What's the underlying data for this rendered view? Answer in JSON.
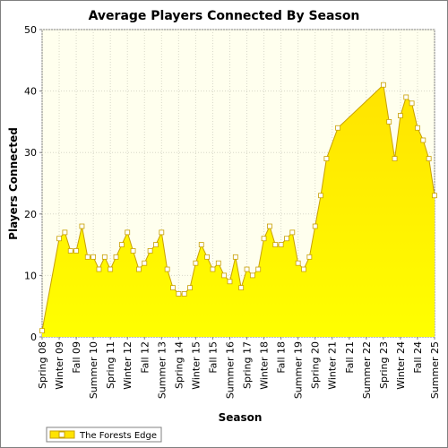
{
  "chart_data": {
    "type": "area",
    "title": "Average Players Connected By Season",
    "xlabel": "Season",
    "ylabel": "Players Connected",
    "ylim": [
      0,
      50
    ],
    "yticks": [
      0,
      10,
      20,
      30,
      40,
      50
    ],
    "grid": true,
    "legend_position": "bottom-left",
    "colors": {
      "plot_background": "#ffffee",
      "area_fill_top": "#ffe300",
      "area_fill_bottom": "#ffff00",
      "line": "#c8a000",
      "marker_fill": "#ffffff",
      "grid": "#d8d8c8"
    },
    "categories": [
      "Spring 08",
      "Summer 08",
      "Fall 08",
      "Winter 09",
      "Spring 09",
      "Summer 09",
      "Fall 09",
      "Winter 10",
      "Spring 10",
      "Summer 10",
      "Fall 10",
      "Winter 11",
      "Spring 11",
      "Summer 11",
      "Fall 11",
      "Winter 12",
      "Spring 12",
      "Summer 12",
      "Fall 12",
      "Winter 13",
      "Spring 13",
      "Summer 13",
      "Fall 13",
      "Winter 14",
      "Spring 14",
      "Summer 14",
      "Fall 14",
      "Winter 15",
      "Spring 15",
      "Summer 15",
      "Fall 15",
      "Winter 16",
      "Spring 16",
      "Summer 16",
      "Fall 16",
      "Winter 17",
      "Spring 17",
      "Summer 17",
      "Fall 17",
      "Winter 18",
      "Spring 18",
      "Summer 18",
      "Fall 18",
      "Winter 19",
      "Spring 19",
      "Summer 19",
      "Fall 19",
      "Winter 20",
      "Spring 20",
      "Summer 20",
      "Fall 20",
      "Winter 21",
      "Spring 21",
      "Summer 21",
      "Fall 21",
      "Winter 22",
      "Spring 22",
      "Summer 22",
      "Fall 22",
      "Winter 23",
      "Spring 23",
      "Summer 23",
      "Fall 23",
      "Winter 24",
      "Spring 24",
      "Summer 24",
      "Fall 24",
      "Winter 25",
      "Spring 25",
      "Summer 25"
    ],
    "tick_labels": [
      "Spring 08",
      "Winter 09",
      "Fall 09",
      "Summer 10",
      "Spring 11",
      "Winter 12",
      "Fall 12",
      "Summer 13",
      "Spring 14",
      "Winter 15",
      "Fall 15",
      "Summer 16",
      "Spring 17",
      "Winter 18",
      "Fall 18",
      "Summer 19",
      "Spring 20",
      "Winter 21",
      "Fall 21",
      "Summer 22",
      "Spring 23",
      "Winter 24",
      "Fall 24",
      "Summer 25"
    ],
    "series": [
      {
        "name": "The Forests Edge",
        "points": [
          {
            "season": "Spring 08",
            "value": 1
          },
          {
            "season": "Winter 09",
            "value": 16
          },
          {
            "season": "Spring 09",
            "value": 17
          },
          {
            "season": "Summer 09",
            "value": 14
          },
          {
            "season": "Fall 09",
            "value": 14
          },
          {
            "season": "Winter 10",
            "value": 18
          },
          {
            "season": "Spring 10",
            "value": 13
          },
          {
            "season": "Summer 10",
            "value": 13
          },
          {
            "season": "Fall 10",
            "value": 11
          },
          {
            "season": "Winter 11",
            "value": 13
          },
          {
            "season": "Spring 11",
            "value": 11
          },
          {
            "season": "Summer 11",
            "value": 13
          },
          {
            "season": "Fall 11",
            "value": 15
          },
          {
            "season": "Winter 12",
            "value": 17
          },
          {
            "season": "Spring 12",
            "value": 14
          },
          {
            "season": "Summer 12",
            "value": 11
          },
          {
            "season": "Fall 12",
            "value": 12
          },
          {
            "season": "Winter 13",
            "value": 14
          },
          {
            "season": "Spring 13",
            "value": 15
          },
          {
            "season": "Summer 13",
            "value": 17
          },
          {
            "season": "Fall 13",
            "value": 11
          },
          {
            "season": "Winter 14",
            "value": 8
          },
          {
            "season": "Spring 14",
            "value": 7
          },
          {
            "season": "Summer 14",
            "value": 7
          },
          {
            "season": "Fall 14",
            "value": 8
          },
          {
            "season": "Winter 15",
            "value": 12
          },
          {
            "season": "Spring 15",
            "value": 15
          },
          {
            "season": "Summer 15",
            "value": 13
          },
          {
            "season": "Fall 15",
            "value": 11
          },
          {
            "season": "Winter 16",
            "value": 12
          },
          {
            "season": "Spring 16",
            "value": 10
          },
          {
            "season": "Summer 16",
            "value": 9
          },
          {
            "season": "Fall 16",
            "value": 13
          },
          {
            "season": "Winter 17",
            "value": 8
          },
          {
            "season": "Spring 17",
            "value": 11
          },
          {
            "season": "Summer 17",
            "value": 10
          },
          {
            "season": "Fall 17",
            "value": 11
          },
          {
            "season": "Winter 18",
            "value": 16
          },
          {
            "season": "Spring 18",
            "value": 18
          },
          {
            "season": "Summer 18",
            "value": 15
          },
          {
            "season": "Fall 18",
            "value": 15
          },
          {
            "season": "Winter 19",
            "value": 16
          },
          {
            "season": "Spring 19",
            "value": 17
          },
          {
            "season": "Summer 19",
            "value": 12
          },
          {
            "season": "Fall 19",
            "value": 11
          },
          {
            "season": "Winter 20",
            "value": 13
          },
          {
            "season": "Spring 20",
            "value": 18
          },
          {
            "season": "Summer 20",
            "value": 23
          },
          {
            "season": "Fall 20",
            "value": 29
          },
          {
            "season": "Spring 21",
            "value": 34
          },
          {
            "season": "Spring 23",
            "value": 41
          },
          {
            "season": "Summer 23",
            "value": 35
          },
          {
            "season": "Fall 23",
            "value": 29
          },
          {
            "season": "Winter 24",
            "value": 36
          },
          {
            "season": "Spring 24",
            "value": 39
          },
          {
            "season": "Summer 24",
            "value": 38
          },
          {
            "season": "Fall 24",
            "value": 34
          },
          {
            "season": "Winter 25",
            "value": 32
          },
          {
            "season": "Spring 25",
            "value": 29
          },
          {
            "season": "Summer 25",
            "value": 23
          }
        ]
      }
    ]
  }
}
